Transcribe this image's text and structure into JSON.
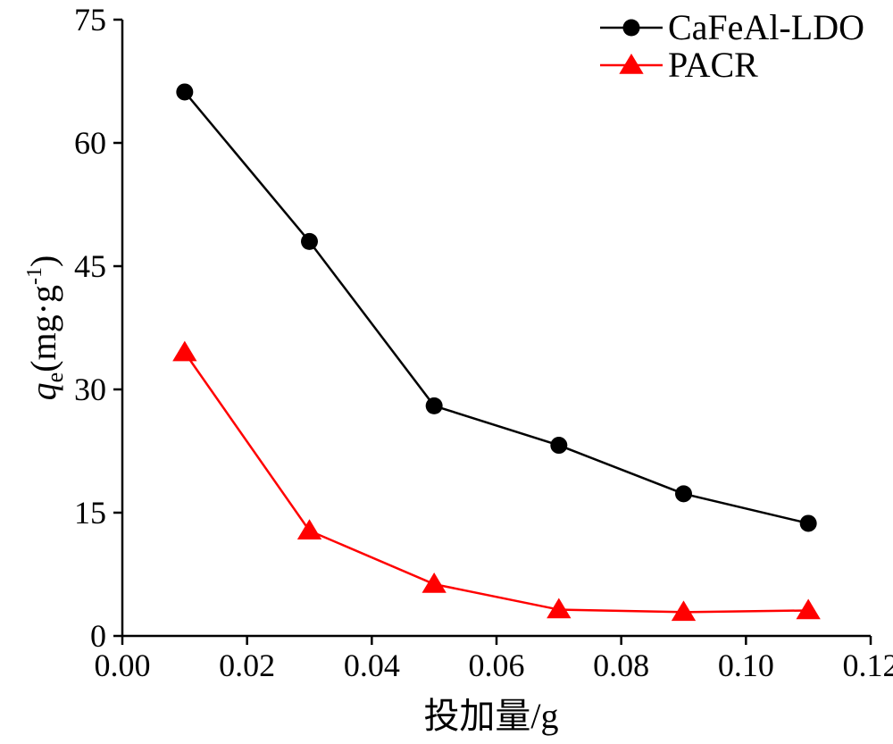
{
  "chart_data": {
    "type": "line",
    "title": "",
    "xlabel": "投加量/g",
    "ylabel": {
      "base": "q",
      "sub": "e",
      "unit_prefix": "(mg·g",
      "unit_sup": "-1",
      "unit_suffix": ")"
    },
    "xlim": [
      0.0,
      0.12
    ],
    "ylim": [
      0,
      75
    ],
    "xticks": [
      "0.00",
      "0.02",
      "0.04",
      "0.06",
      "0.08",
      "0.10",
      "0.12"
    ],
    "yticks": [
      "0",
      "15",
      "30",
      "45",
      "60",
      "75"
    ],
    "grid": false,
    "legend_position": "top-right",
    "series": [
      {
        "name": "CaFeAl-LDO",
        "color": "#000000",
        "marker": "circle",
        "x": [
          0.01,
          0.03,
          0.05,
          0.07,
          0.09,
          0.11
        ],
        "y": [
          66.2,
          48.0,
          28.0,
          23.2,
          17.3,
          13.7
        ]
      },
      {
        "name": "PACR",
        "color": "#ff0000",
        "marker": "triangle",
        "x": [
          0.01,
          0.03,
          0.05,
          0.07,
          0.09,
          0.11
        ],
        "y": [
          34.5,
          12.8,
          6.3,
          3.2,
          2.9,
          3.1
        ]
      }
    ]
  }
}
